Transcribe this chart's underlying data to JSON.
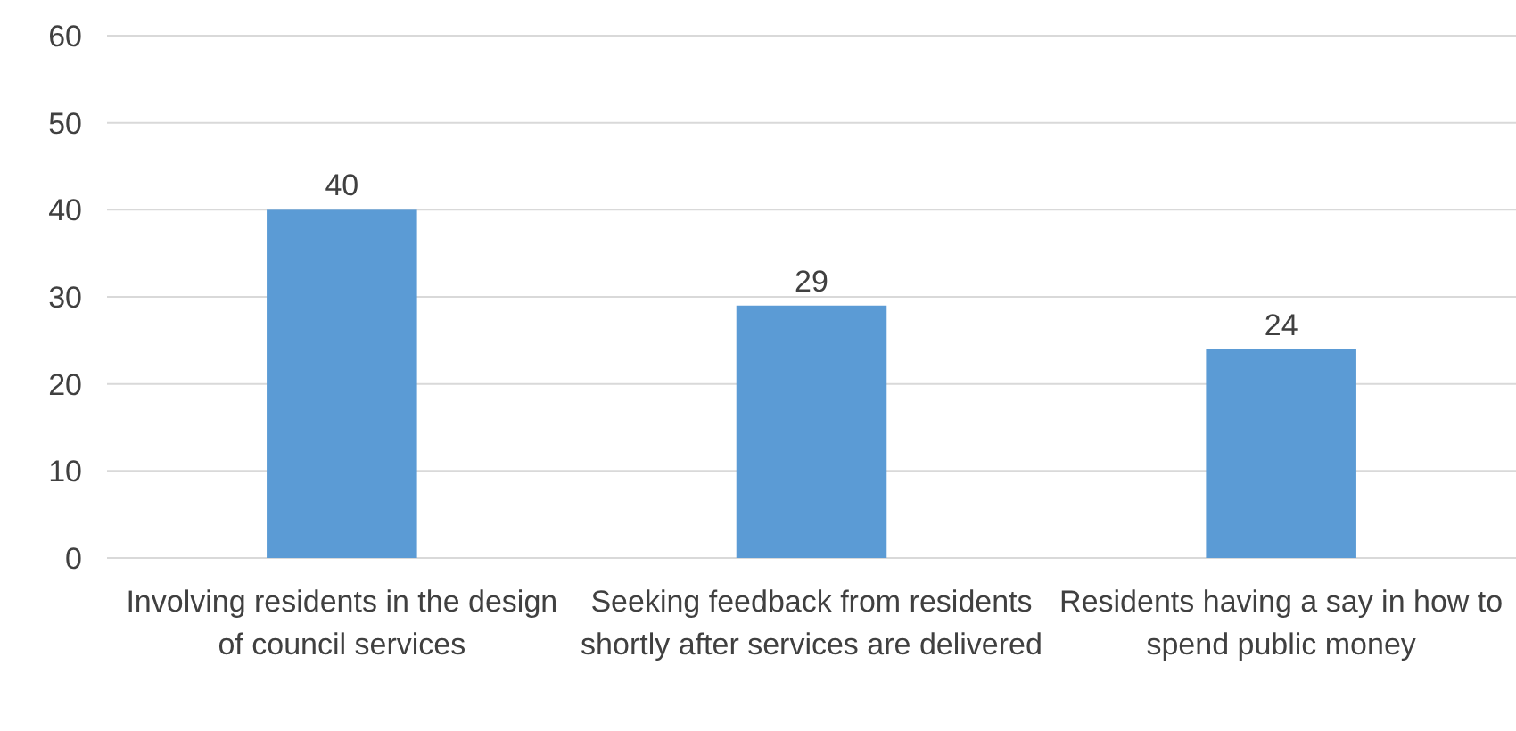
{
  "chart_data": {
    "type": "bar",
    "categories": [
      "Involving residents in the design of council services",
      "Seeking feedback from residents shortly after services are delivered",
      "Residents having a say in how to spend public money"
    ],
    "values": [
      40,
      29,
      24
    ],
    "color": "#5b9bd5",
    "ylim": [
      0,
      60
    ],
    "yticks": [
      0,
      10,
      20,
      30,
      40,
      50,
      60
    ],
    "grid": "y",
    "data_labels": true
  }
}
